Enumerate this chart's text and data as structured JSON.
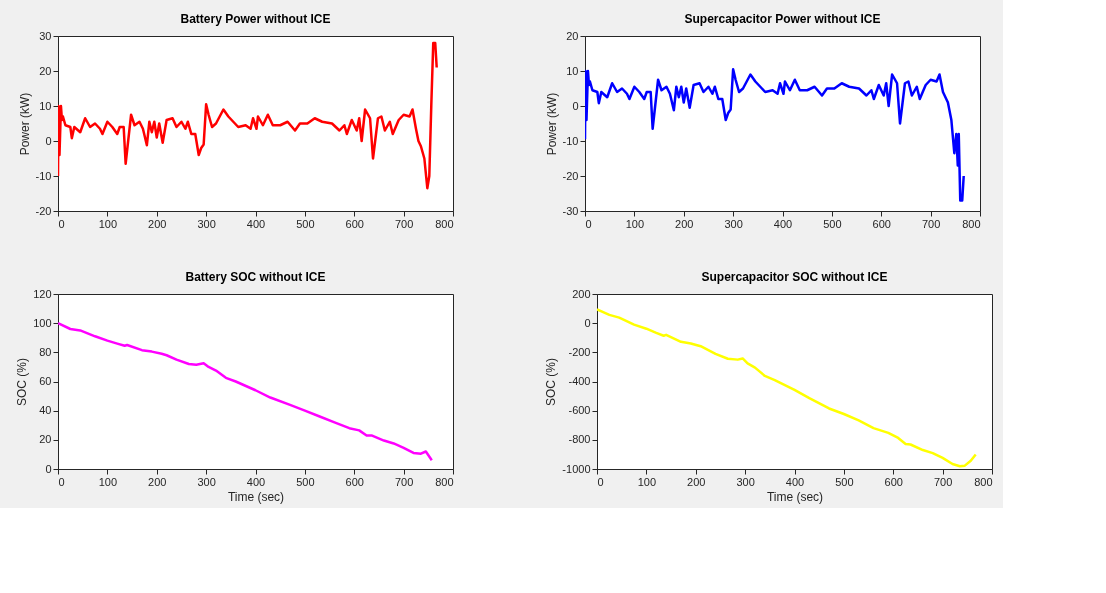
{
  "chart_data": [
    {
      "type": "line",
      "title": "Battery Power without ICE",
      "ylabel": "Power (kW)",
      "xlim": [
        0,
        800
      ],
      "ylim": [
        -20,
        30
      ],
      "xticks": [
        0,
        100,
        200,
        300,
        400,
        500,
        600,
        700,
        800
      ],
      "yticks": [
        -20,
        -10,
        0,
        10,
        20,
        30
      ],
      "grid": false,
      "x": [
        0,
        1,
        3,
        6,
        8,
        10,
        15,
        25,
        28,
        33,
        45,
        55,
        65,
        75,
        85,
        90,
        100,
        110,
        120,
        125,
        133,
        137,
        148,
        155,
        165,
        172,
        180,
        185,
        190,
        195,
        200,
        205,
        212,
        220,
        232,
        240,
        250,
        258,
        263,
        270,
        278,
        285,
        290,
        295,
        300,
        305,
        312,
        320,
        335,
        345,
        355,
        365,
        380,
        390,
        395,
        402,
        405,
        415,
        425,
        435,
        450,
        465,
        480,
        490,
        505,
        520,
        535,
        555,
        570,
        580,
        585,
        595,
        605,
        610,
        615,
        622,
        632,
        638,
        648,
        655,
        662,
        672,
        678,
        690,
        700,
        712,
        718,
        725,
        730,
        735,
        742,
        748,
        752,
        756,
        760,
        764,
        767
      ],
      "series": [
        {
          "color": "#ff0000",
          "values": [
            -10,
            10,
            -4,
            10,
            6,
            7,
            4.5,
            4,
            0.8,
            4,
            2.5,
            6.5,
            4,
            5,
            3.5,
            2,
            5.5,
            4,
            2,
            4,
            4,
            -6.5,
            7.5,
            4.5,
            5.5,
            3.5,
            -1.2,
            5.5,
            2.5,
            5.5,
            1,
            5,
            -0.5,
            6,
            6.5,
            4,
            5.5,
            3.5,
            5.5,
            2,
            2,
            -4,
            -2,
            -1,
            10.5,
            7.5,
            4,
            5,
            9,
            7,
            5.5,
            4,
            4.5,
            3.5,
            6.5,
            3.5,
            7,
            4.5,
            7.5,
            4.5,
            4.5,
            5.5,
            3,
            5,
            5,
            6.5,
            5.5,
            5,
            3,
            4.5,
            2,
            6,
            3,
            6.5,
            0,
            9,
            6.5,
            -5,
            6.5,
            7,
            3,
            5.5,
            2,
            6,
            7.5,
            7,
            9,
            3.5,
            0,
            -1.5,
            -5,
            -13.5,
            -10,
            10,
            28,
            28,
            21
          ]
        }
      ]
    },
    {
      "type": "line",
      "title": "Supercapacitor Power without ICE",
      "ylabel": "Power (kW)",
      "xlim": [
        0,
        800
      ],
      "ylim": [
        -30,
        20
      ],
      "xticks": [
        0,
        100,
        200,
        300,
        400,
        500,
        600,
        700,
        800
      ],
      "yticks": [
        -30,
        -20,
        -10,
        0,
        10,
        20
      ],
      "grid": false,
      "x": [
        0,
        1,
        3,
        6,
        8,
        10,
        15,
        25,
        28,
        33,
        45,
        55,
        65,
        75,
        85,
        90,
        100,
        110,
        120,
        125,
        133,
        137,
        148,
        155,
        165,
        172,
        180,
        185,
        190,
        195,
        200,
        205,
        212,
        220,
        232,
        240,
        250,
        258,
        263,
        270,
        278,
        285,
        290,
        295,
        300,
        305,
        312,
        320,
        335,
        345,
        355,
        365,
        380,
        390,
        395,
        402,
        405,
        415,
        425,
        435,
        450,
        465,
        480,
        490,
        505,
        520,
        535,
        555,
        570,
        580,
        585,
        595,
        605,
        610,
        615,
        622,
        632,
        638,
        648,
        655,
        662,
        672,
        678,
        690,
        700,
        712,
        718,
        725,
        735,
        742,
        748,
        752,
        755,
        757,
        760,
        764,
        767
      ],
      "series": [
        {
          "color": "#0000ff",
          "values": [
            -9.5,
            10,
            -4,
            10,
            6,
            7,
            4.5,
            4,
            0.8,
            4,
            2.5,
            6.5,
            4,
            5,
            3.5,
            2,
            5.5,
            4,
            2,
            4,
            4,
            -6.5,
            7.5,
            4.5,
            5.5,
            3.5,
            -1.2,
            5.5,
            2.5,
            5.5,
            1,
            5,
            -0.5,
            6,
            6.5,
            4,
            5.5,
            3.5,
            5.5,
            2,
            2,
            -4,
            -2,
            -1,
            10.5,
            7.5,
            4,
            5,
            9,
            7,
            5.5,
            4,
            4.5,
            3.5,
            6.5,
            3.5,
            7,
            4.5,
            7.5,
            4.5,
            4.5,
            5.5,
            3,
            5,
            5,
            6.5,
            5.5,
            5,
            3,
            4.5,
            2,
            6,
            3,
            6.5,
            0,
            9,
            6.5,
            -5,
            6.5,
            7,
            3,
            5.5,
            2,
            6,
            7.5,
            7,
            9,
            4,
            1,
            -4,
            -13.5,
            -8,
            -17,
            -8,
            -27,
            -27,
            -20
          ]
        }
      ]
    },
    {
      "type": "line",
      "title": "Battery SOC without ICE",
      "xlabel": "Time (sec)",
      "ylabel": "SOC (%)",
      "xlim": [
        0,
        800
      ],
      "ylim": [
        0,
        120
      ],
      "xticks": [
        0,
        100,
        200,
        300,
        400,
        500,
        600,
        700,
        800
      ],
      "yticks": [
        0,
        20,
        40,
        60,
        80,
        100,
        120
      ],
      "grid": false,
      "x": [
        0,
        25,
        45,
        75,
        100,
        120,
        135,
        140,
        170,
        190,
        210,
        220,
        240,
        265,
        280,
        295,
        305,
        320,
        340,
        360,
        400,
        430,
        470,
        500,
        530,
        560,
        590,
        610,
        625,
        635,
        660,
        680,
        700,
        720,
        735,
        745,
        757
      ],
      "series": [
        {
          "color": "#ff00ff",
          "values": [
            100,
            96,
            95,
            91,
            88,
            86,
            84.5,
            85,
            81.5,
            80.5,
            79,
            78,
            75,
            72,
            71.5,
            72.5,
            70,
            67.5,
            62.5,
            60,
            54,
            49,
            44,
            40,
            36,
            32,
            28,
            26.5,
            23,
            23,
            19.5,
            17.5,
            14.5,
            11,
            10.5,
            12,
            6
          ]
        }
      ]
    },
    {
      "type": "line",
      "title": "Supercapacitor SOC without ICE",
      "xlabel": "Time (sec)",
      "ylabel": "SOC (%)",
      "xlim": [
        0,
        800
      ],
      "ylim": [
        -1000,
        200
      ],
      "xticks": [
        0,
        100,
        200,
        300,
        400,
        500,
        600,
        700,
        800
      ],
      "yticks": [
        -1000,
        -800,
        -600,
        -400,
        -200,
        0,
        200
      ],
      "grid": false,
      "x": [
        0,
        25,
        45,
        75,
        100,
        120,
        135,
        140,
        170,
        190,
        210,
        240,
        265,
        285,
        295,
        305,
        320,
        340,
        360,
        400,
        430,
        470,
        500,
        530,
        560,
        590,
        610,
        625,
        635,
        660,
        680,
        700,
        720,
        735,
        745,
        757,
        767
      ],
      "series": [
        {
          "color": "#ffff00",
          "values": [
            95,
            57,
            38,
            -10,
            -38,
            -67,
            -86,
            -80,
            -128,
            -139,
            -158,
            -210,
            -244,
            -250,
            -242,
            -276,
            -305,
            -362,
            -390,
            -457,
            -514,
            -585,
            -623,
            -667,
            -720,
            -752,
            -787,
            -829,
            -832,
            -870,
            -891,
            -924,
            -966,
            -981,
            -977,
            -943,
            -901
          ]
        }
      ]
    }
  ]
}
